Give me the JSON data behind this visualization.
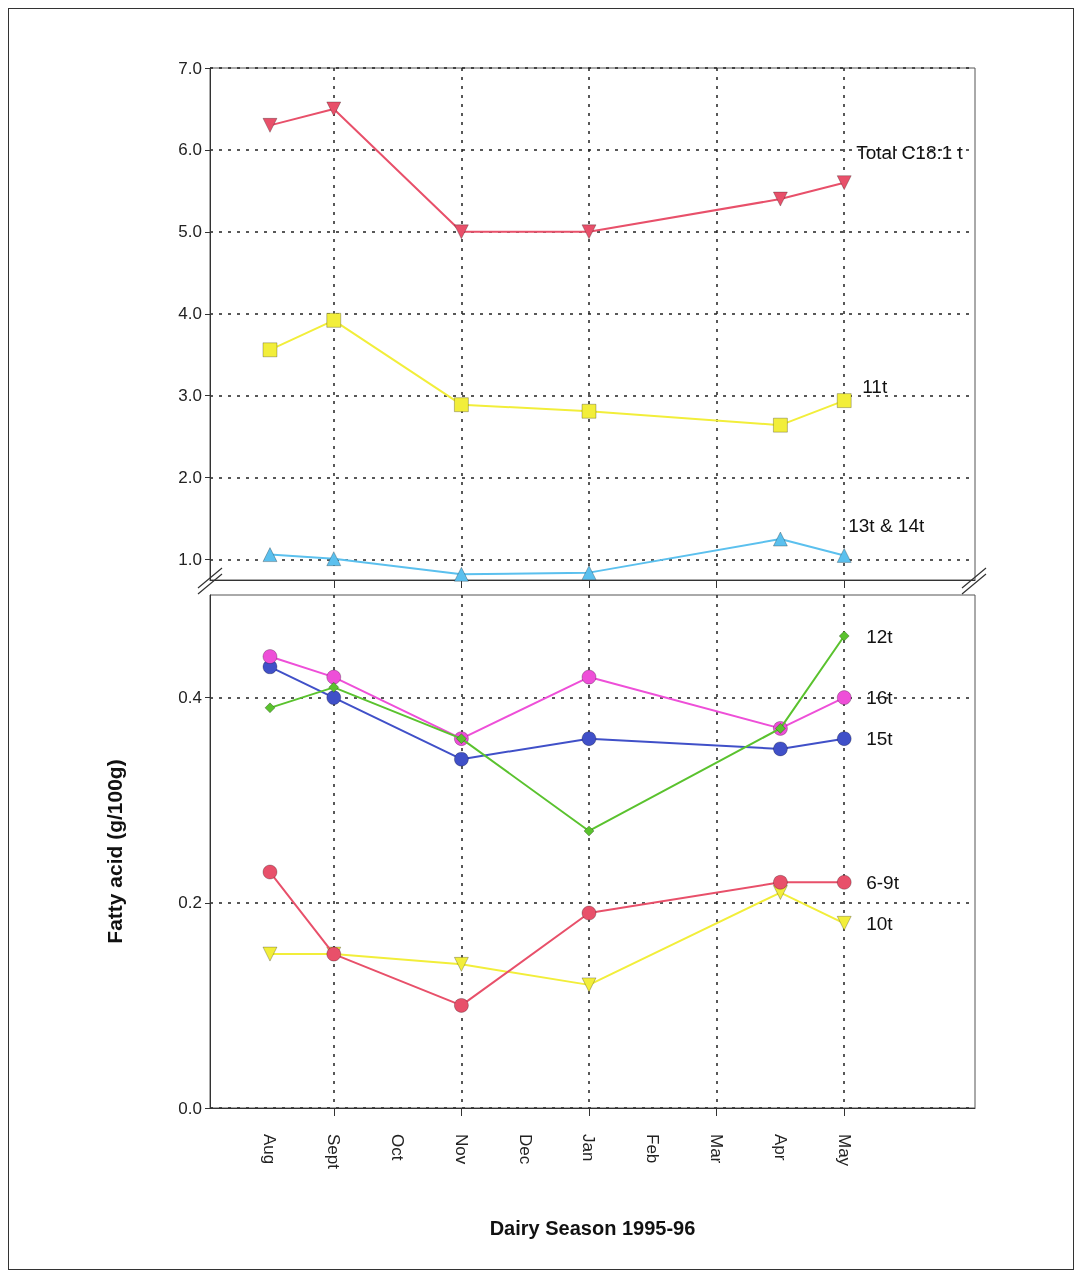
{
  "chart_data": [
    {
      "type": "line",
      "ylim": [
        0.75,
        7.0
      ],
      "yticks": [
        {
          "value": 1,
          "label": "1.0"
        },
        {
          "value": 2,
          "label": "2.0"
        },
        {
          "value": 3,
          "label": "3.0"
        },
        {
          "value": 4,
          "label": "4.0"
        },
        {
          "value": 5,
          "label": "5.0"
        },
        {
          "value": 6,
          "label": "6.0"
        },
        {
          "value": 7,
          "label": "7.0"
        }
      ],
      "grid": true,
      "tick_labels": "y",
      "series": [
        {
          "name": "Total C18:1 t",
          "color": "#e8506a",
          "marker": "triangle-down",
          "values": [
            6.3,
            6.5,
            null,
            5.0,
            null,
            5.0,
            null,
            null,
            5.4,
            5.6
          ]
        },
        {
          "name": "11t",
          "color": "#f2ee3a",
          "marker": "square",
          "values": [
            3.56,
            3.92,
            null,
            2.89,
            null,
            2.81,
            null,
            null,
            2.64,
            2.94
          ]
        },
        {
          "name": "13t & 14t",
          "color": "#5bc0ee",
          "marker": "triangle",
          "values": [
            1.06,
            1.01,
            null,
            0.82,
            null,
            0.84,
            null,
            null,
            1.25,
            1.05
          ]
        }
      ]
    },
    {
      "type": "line",
      "categories": [
        "Aug",
        "Sept",
        "Oct",
        "Nov",
        "Dec",
        "Jan",
        "Feb",
        "Mar",
        "Apr",
        "May"
      ],
      "ylim": [
        0,
        0.5
      ],
      "yticks": [
        {
          "value": 0,
          "label": "0.0"
        },
        {
          "value": 0.2,
          "label": "0.2"
        },
        {
          "value": 0.4,
          "label": "0.4"
        }
      ],
      "grid": true,
      "xlabel": "Dairy Season 1995-96",
      "ylabel": "Fatty acid (g/100g)",
      "series": [
        {
          "name": "12t",
          "color": "#5ac22e",
          "marker": "diamond",
          "values": [
            0.39,
            0.41,
            null,
            0.36,
            null,
            0.27,
            null,
            null,
            0.37,
            0.46
          ]
        },
        {
          "name": "16t",
          "color": "#ee4fd8",
          "marker": "circle",
          "values": [
            0.44,
            0.42,
            null,
            0.36,
            null,
            0.42,
            null,
            null,
            0.37,
            0.4
          ]
        },
        {
          "name": "15t",
          "color": "#4050c8",
          "marker": "circle",
          "values": [
            0.43,
            0.4,
            null,
            0.34,
            null,
            0.36,
            null,
            null,
            0.35,
            0.36
          ]
        },
        {
          "name": "6-9t",
          "color": "#e8506a",
          "marker": "circle",
          "values": [
            0.23,
            0.15,
            null,
            0.1,
            null,
            0.19,
            null,
            null,
            0.22,
            0.22
          ]
        },
        {
          "name": "10t",
          "color": "#f2ee3a",
          "marker": "triangle-down",
          "values": [
            0.15,
            0.15,
            null,
            0.14,
            null,
            0.12,
            null,
            null,
            0.21,
            0.18
          ]
        }
      ]
    }
  ]
}
